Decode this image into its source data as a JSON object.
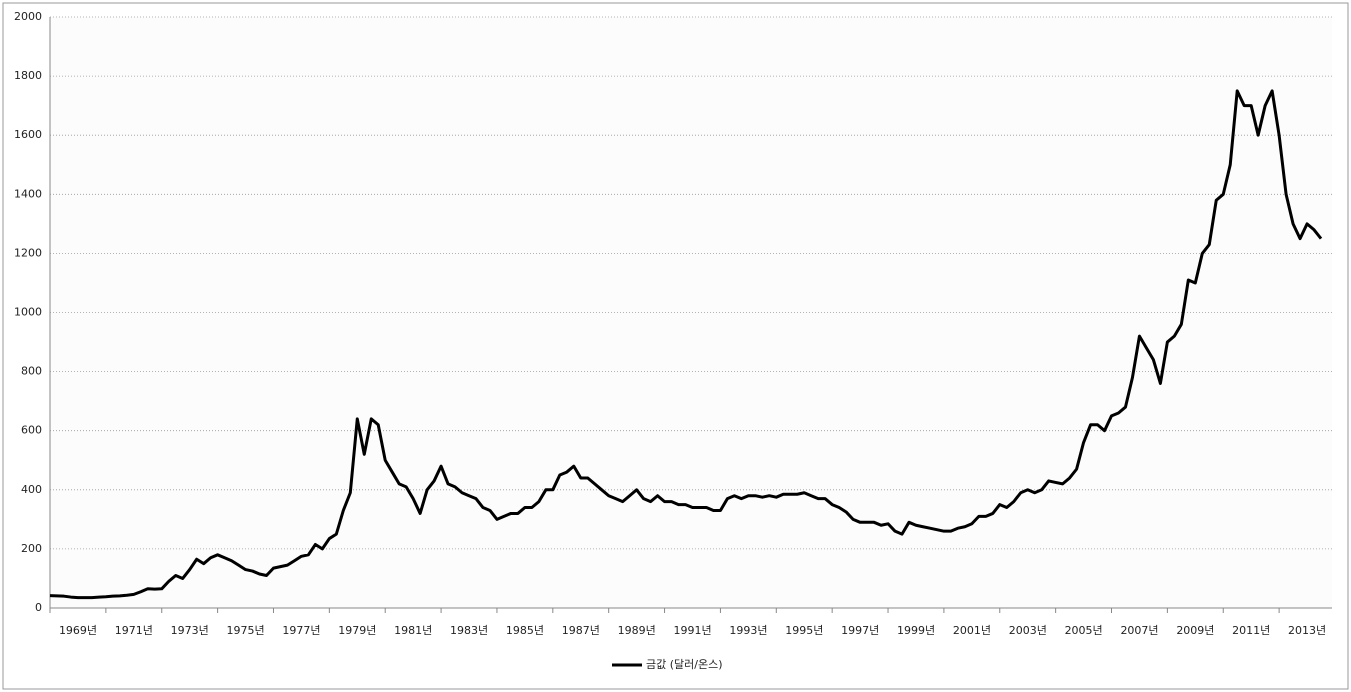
{
  "chart_data": {
    "type": "line",
    "categories": [
      "1969년",
      null,
      null,
      null,
      null,
      null,
      null,
      null,
      "1971년",
      null,
      null,
      null,
      null,
      null,
      null,
      null,
      "1973년",
      null,
      null,
      null,
      null,
      null,
      null,
      null,
      "1975년",
      null,
      null,
      null,
      null,
      null,
      null,
      null,
      "1977년",
      null,
      null,
      null,
      null,
      null,
      null,
      null,
      "1979년",
      null,
      null,
      null,
      null,
      null,
      null,
      null,
      "1981년",
      null,
      null,
      null,
      null,
      null,
      null,
      null,
      "1983년",
      null,
      null,
      null,
      null,
      null,
      null,
      null,
      "1985년",
      null,
      null,
      null,
      null,
      null,
      null,
      null,
      "1987년",
      null,
      null,
      null,
      null,
      null,
      null,
      null,
      "1989년",
      null,
      null,
      null,
      null,
      null,
      null,
      null,
      "1991년",
      null,
      null,
      null,
      null,
      null,
      null,
      null,
      "1993년",
      null,
      null,
      null,
      null,
      null,
      null,
      null,
      "1995년",
      null,
      null,
      null,
      null,
      null,
      null,
      null,
      "1997년",
      null,
      null,
      null,
      null,
      null,
      null,
      null,
      "1999년",
      null,
      null,
      null,
      null,
      null,
      null,
      null,
      "2001년",
      null,
      null,
      null,
      null,
      null,
      null,
      null,
      "2003년",
      null,
      null,
      null,
      null,
      null,
      null,
      null,
      "2005년",
      null,
      null,
      null,
      null,
      null,
      null,
      null,
      "2007년",
      null,
      null,
      null,
      null,
      null,
      null,
      null,
      "2009년",
      null,
      null,
      null,
      null,
      null,
      null,
      null,
      "2011년",
      null,
      null,
      null,
      null,
      null,
      null,
      null,
      "2013년",
      null,
      null,
      null,
      null,
      null,
      null
    ],
    "series": [
      {
        "name": "금값 (달러/온스)",
        "color": "#000000",
        "values": [
          42,
          41,
          40,
          37,
          35,
          35,
          35,
          37,
          38,
          40,
          41,
          43,
          46,
          55,
          65,
          64,
          65,
          90,
          110,
          100,
          130,
          165,
          150,
          170,
          180,
          170,
          160,
          145,
          130,
          125,
          115,
          110,
          135,
          140,
          145,
          160,
          175,
          180,
          215,
          200,
          235,
          250,
          330,
          390,
          640,
          520,
          640,
          620,
          500,
          460,
          420,
          410,
          370,
          320,
          400,
          430,
          480,
          420,
          410,
          390,
          380,
          370,
          340,
          330,
          300,
          310,
          320,
          320,
          340,
          340,
          360,
          400,
          400,
          450,
          460,
          480,
          440,
          440,
          420,
          400,
          380,
          370,
          360,
          380,
          400,
          370,
          360,
          380,
          360,
          360,
          350,
          350,
          340,
          340,
          340,
          330,
          330,
          370,
          380,
          370,
          380,
          380,
          375,
          380,
          375,
          385,
          385,
          385,
          390,
          380,
          370,
          370,
          350,
          340,
          325,
          300,
          290,
          290,
          290,
          280,
          285,
          260,
          250,
          290,
          280,
          275,
          270,
          265,
          260,
          260,
          270,
          275,
          285,
          310,
          310,
          320,
          350,
          340,
          360,
          390,
          400,
          390,
          400,
          430,
          425,
          420,
          440,
          470,
          560,
          620,
          620,
          600,
          650,
          660,
          680,
          780,
          920,
          880,
          840,
          760,
          900,
          920,
          960,
          1110,
          1100,
          1200,
          1230,
          1380,
          1400,
          1500,
          1750,
          1700,
          1700,
          1600,
          1700,
          1750,
          1600,
          1400,
          1300,
          1250,
          1300,
          1280,
          1250
        ]
      }
    ],
    "ylim": [
      0,
      2000
    ],
    "yticks": [
      0,
      200,
      400,
      600,
      800,
      1000,
      1200,
      1400,
      1600,
      1800,
      2000
    ],
    "grid": true,
    "legend": "bottom"
  }
}
